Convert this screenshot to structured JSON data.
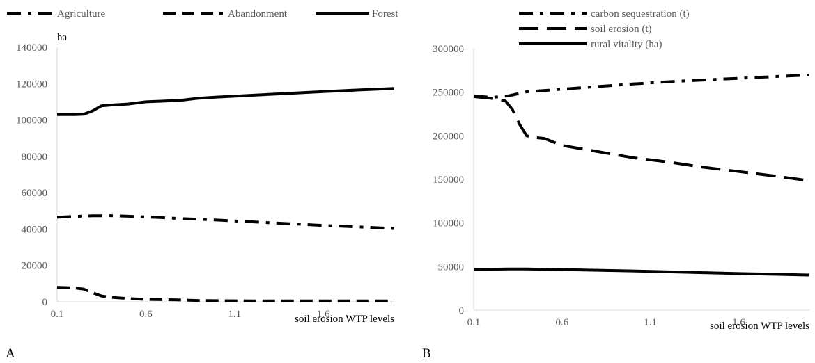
{
  "chart_data": [
    {
      "panel_label": "A",
      "type": "line",
      "xlabel": "soil erosion WTP levels",
      "ylabel": "ha",
      "ylim": [
        0,
        140000
      ],
      "xlim": [
        0.1,
        2.0
      ],
      "xticks": [
        "0.1",
        "0.6",
        "1.1",
        "1.6"
      ],
      "yticks": [
        "0",
        "20000",
        "40000",
        "60000",
        "80000",
        "100000",
        "120000",
        "140000"
      ],
      "legend_position": "top",
      "grid": false,
      "series": [
        {
          "name": "Agriculture",
          "style": "dash-dot",
          "x": [
            0.1,
            0.2,
            0.3,
            0.4,
            0.5,
            0.6,
            0.7,
            0.8,
            0.9,
            1.0,
            1.2,
            1.4,
            1.6,
            1.8,
            2.0
          ],
          "y": [
            46500,
            47000,
            47300,
            47400,
            47100,
            46700,
            46300,
            45800,
            45400,
            45000,
            44000,
            43000,
            42000,
            41200,
            40300
          ]
        },
        {
          "name": "Abandonment",
          "style": "dashed",
          "x": [
            0.1,
            0.2,
            0.25,
            0.3,
            0.35,
            0.4,
            0.5,
            0.6,
            0.7,
            0.8,
            0.9,
            1.0,
            1.2,
            1.4,
            1.6,
            1.8,
            2.0
          ],
          "y": [
            8000,
            7600,
            7000,
            5000,
            3200,
            2500,
            1800,
            1300,
            1200,
            1000,
            700,
            600,
            500,
            500,
            500,
            500,
            500
          ]
        },
        {
          "name": "Forest",
          "style": "solid",
          "x": [
            0.1,
            0.2,
            0.25,
            0.3,
            0.35,
            0.4,
            0.5,
            0.6,
            0.7,
            0.8,
            0.9,
            1.0,
            1.2,
            1.4,
            1.6,
            1.8,
            2.0
          ],
          "y": [
            103000,
            103000,
            103200,
            105000,
            107800,
            108200,
            108800,
            110000,
            110400,
            110900,
            112000,
            112600,
            113600,
            114600,
            115600,
            116500,
            117300
          ]
        }
      ]
    },
    {
      "panel_label": "B",
      "type": "line",
      "xlabel": "soil erosion WTP levels",
      "ylabel": "",
      "ylim": [
        0,
        300000
      ],
      "xlim": [
        0.1,
        2.0
      ],
      "xticks": [
        "0.1",
        "0.6",
        "1.1",
        "1.6"
      ],
      "yticks": [
        "0",
        "50000",
        "100000",
        "150000",
        "200000",
        "250000",
        "300000"
      ],
      "legend_position": "top",
      "grid": false,
      "series": [
        {
          "name": "carbon sequestration (t)",
          "style": "dash-dot",
          "x": [
            0.1,
            0.2,
            0.3,
            0.4,
            0.6,
            0.8,
            1.0,
            1.2,
            1.4,
            1.6,
            1.8,
            2.0
          ],
          "y": [
            246000,
            244000,
            246000,
            250500,
            253500,
            256500,
            259500,
            262000,
            264000,
            266000,
            268000,
            269800
          ]
        },
        {
          "name": "soil erosion (t)",
          "style": "long-dash",
          "x": [
            0.1,
            0.2,
            0.28,
            0.32,
            0.36,
            0.4,
            0.45,
            0.5,
            0.6,
            0.8,
            1.0,
            1.2,
            1.4,
            1.6,
            1.8,
            2.0
          ],
          "y": [
            245000,
            243000,
            240000,
            230000,
            213000,
            200000,
            198000,
            197000,
            189000,
            182000,
            175000,
            170000,
            164000,
            159000,
            154000,
            148500
          ]
        },
        {
          "name": "rural vitality (ha)",
          "style": "solid",
          "x": [
            0.1,
            0.2,
            0.3,
            0.4,
            0.6,
            0.8,
            1.0,
            1.2,
            1.4,
            1.6,
            1.8,
            2.0
          ],
          "y": [
            46500,
            47000,
            47300,
            47200,
            46600,
            45800,
            45000,
            44000,
            43000,
            42000,
            41200,
            40300
          ]
        }
      ]
    }
  ]
}
